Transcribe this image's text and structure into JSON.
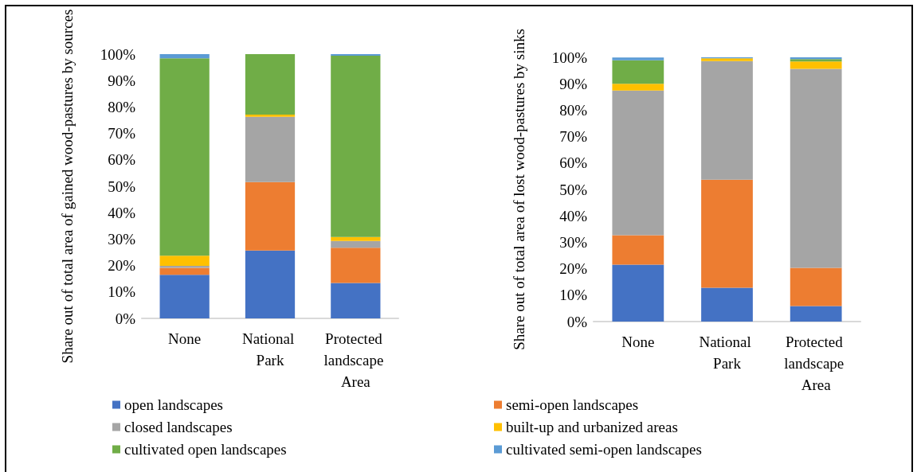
{
  "chart_data": [
    {
      "type": "bar",
      "stacked": true,
      "ylabel": "Share out of total area of gained wood-pastures by sources",
      "categories": [
        "None",
        "National Park",
        "Protected landscape Area"
      ],
      "ylim": [
        0,
        100
      ],
      "yticks": [
        {
          "value": 0,
          "label": "0%"
        },
        {
          "value": 10,
          "label": "10%"
        },
        {
          "value": 20,
          "label": "20%"
        },
        {
          "value": 30,
          "label": "30%"
        },
        {
          "value": 40,
          "label": "40%"
        },
        {
          "value": 50,
          "label": "50%"
        },
        {
          "value": 60,
          "label": "60%"
        },
        {
          "value": 70,
          "label": "70%"
        },
        {
          "value": 80,
          "label": "80%"
        },
        {
          "value": 90,
          "label": "90%"
        },
        {
          "value": 100,
          "label": "100%"
        }
      ],
      "grid": false,
      "legend": "bottom",
      "series": [
        {
          "name": "open landscapes",
          "color": "#4472c4",
          "values": [
            16.5,
            25.7,
            13.4
          ]
        },
        {
          "name": "semi-open landscapes",
          "color": "#ed7d31",
          "values": [
            2.6,
            25.9,
            13.3
          ]
        },
        {
          "name": "closed landscapes",
          "color": "#a5a5a5",
          "values": [
            0.8,
            24.7,
            2.6
          ]
        },
        {
          "name": "built-up and urbanized areas",
          "color": "#ffc000",
          "values": [
            3.8,
            0.8,
            1.5
          ]
        },
        {
          "name": "cultivated open landscapes",
          "color": "#70ad47",
          "values": [
            74.7,
            22.9,
            68.6
          ]
        },
        {
          "name": "cultivated semi-open landscapes",
          "color": "#5b9bd5",
          "values": [
            1.6,
            0,
            0.6
          ]
        }
      ]
    },
    {
      "type": "bar",
      "stacked": true,
      "ylabel": "Share out of total area of lost wood-pastures by sinks",
      "categories": [
        "None",
        "National Park",
        "Protected landscape Area"
      ],
      "ylim": [
        0,
        100
      ],
      "yticks": [
        {
          "value": 0,
          "label": "0%"
        },
        {
          "value": 10,
          "label": "10%"
        },
        {
          "value": 20,
          "label": "20%"
        },
        {
          "value": 30,
          "label": "30%"
        },
        {
          "value": 40,
          "label": "40%"
        },
        {
          "value": 50,
          "label": "50%"
        },
        {
          "value": 60,
          "label": "60%"
        },
        {
          "value": 70,
          "label": "70%"
        },
        {
          "value": 80,
          "label": "80%"
        },
        {
          "value": 90,
          "label": "90%"
        },
        {
          "value": 100,
          "label": "100%"
        }
      ],
      "grid": false,
      "series": [
        {
          "color": "#4472c4",
          "values": [
            21.5,
            12.8,
            5.9
          ]
        },
        {
          "color": "#ed7d31",
          "values": [
            11.2,
            40.9,
            14.4
          ]
        },
        {
          "color": "#a5a5a5",
          "values": [
            54.7,
            44.9,
            75.3
          ]
        },
        {
          "color": "#ffc000",
          "values": [
            2.6,
            1.0,
            2.8
          ]
        },
        {
          "color": "#70ad47",
          "values": [
            8.9,
            0,
            0.9
          ]
        },
        {
          "color": "#5b9bd5",
          "values": [
            1.0,
            0.4,
            0.7
          ]
        }
      ]
    }
  ]
}
